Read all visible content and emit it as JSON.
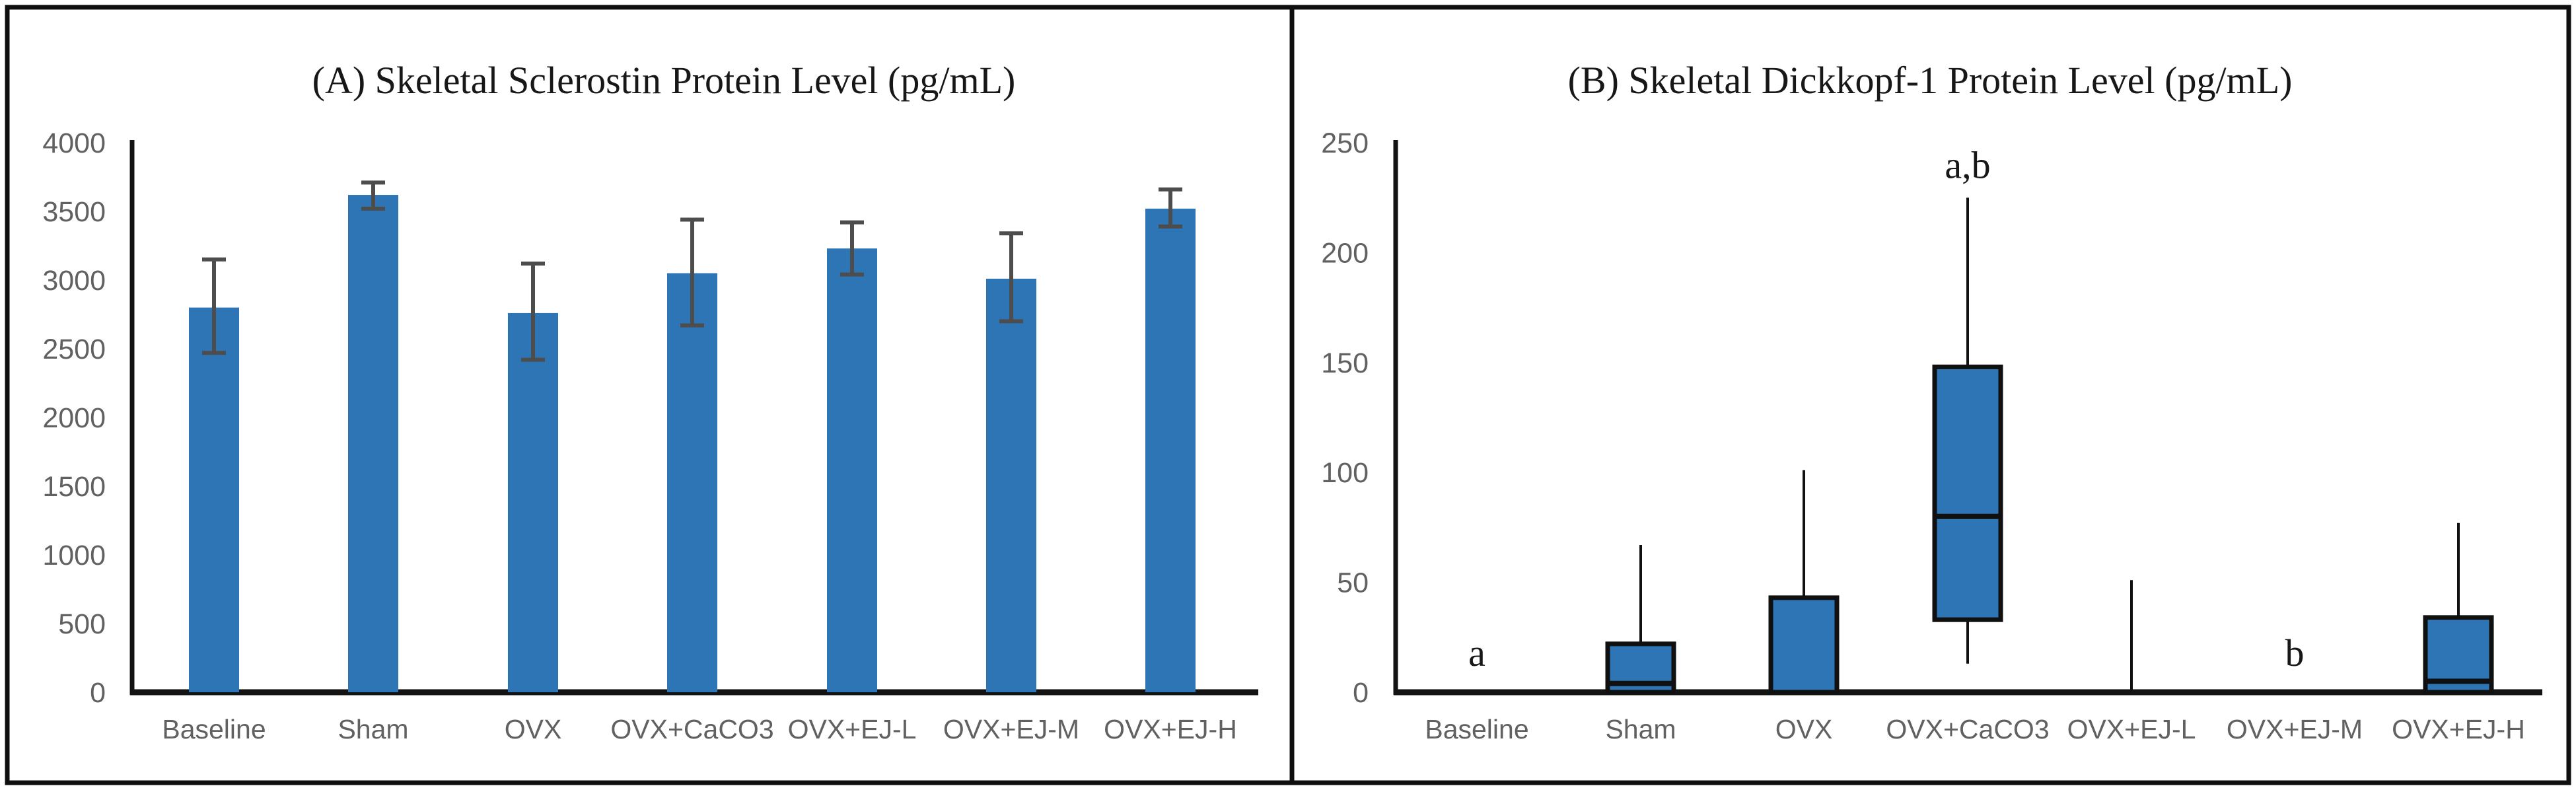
{
  "figure": {
    "background": "#ffffff",
    "border_color": "#0f0f0f"
  },
  "colors": {
    "bar_fill": "#2e75b5",
    "box_fill": "#2e75b5",
    "box_stroke": "#101010",
    "error_bar": "#4d4d4d",
    "axis": "#131313",
    "tick_label": "#616161",
    "category_label": "#616161",
    "title_text": "#171717",
    "annotation_text": "#171717"
  },
  "chart_data": [
    {
      "type": "bar",
      "panel": "A",
      "title": "(A) Skeletal Sclerostin Protein Level (pg/mL)",
      "categories": [
        "Baseline",
        "Sham",
        "OVX",
        "OVX+CaCO3",
        "OVX+EJ-L",
        "OVX+EJ-M",
        "OVX+EJ-H"
      ],
      "values": [
        2800,
        3620,
        2760,
        3050,
        3230,
        3010,
        3520
      ],
      "error_low": [
        2470,
        3520,
        2420,
        2670,
        3040,
        2700,
        3390
      ],
      "error_high": [
        3150,
        3710,
        3120,
        3440,
        3420,
        3340,
        3660
      ],
      "xlabel": "",
      "ylabel": "",
      "ylim": [
        0,
        4000
      ],
      "ytick_step": 500,
      "ytick_labels": [
        "0",
        "500",
        "1000",
        "1500",
        "2000",
        "2500",
        "3000",
        "3500",
        "4000"
      ],
      "grid": false,
      "legend": null
    },
    {
      "type": "box",
      "panel": "B",
      "title": "(B) Skeletal Dickkopf-1 Protein Level (pg/mL)",
      "categories": [
        "Baseline",
        "Sham",
        "OVX",
        "OVX+CaCO3",
        "OVX+EJ-L",
        "OVX+EJ-M",
        "OVX+EJ-H"
      ],
      "boxes": [
        null,
        {
          "q1": 0,
          "median": 4,
          "q3": 22,
          "whisker_low": 0,
          "whisker_high": 67
        },
        {
          "q1": 0,
          "median": null,
          "q3": 43,
          "whisker_low": 0,
          "whisker_high": 101
        },
        {
          "q1": 33,
          "median": 80,
          "q3": 148,
          "whisker_low": 13,
          "whisker_high": 225
        },
        {
          "q1": 0,
          "median": null,
          "q3": 0,
          "whisker_low": 0,
          "whisker_high": 51
        },
        null,
        {
          "q1": 0,
          "median": 5,
          "q3": 34,
          "whisker_low": 0,
          "whisker_high": 77
        }
      ],
      "annotations": [
        {
          "text": "a",
          "category": "Baseline",
          "value": 18
        },
        {
          "text": "a,b",
          "category": "OVX+CaCO3",
          "value": 240
        },
        {
          "text": "b",
          "category": "OVX+EJ-M",
          "value": 18
        }
      ],
      "xlabel": "",
      "ylabel": "",
      "ylim": [
        0,
        250
      ],
      "ytick_step": 50,
      "ytick_labels": [
        "0",
        "50",
        "100",
        "150",
        "200",
        "250"
      ],
      "grid": false,
      "legend": null
    }
  ]
}
